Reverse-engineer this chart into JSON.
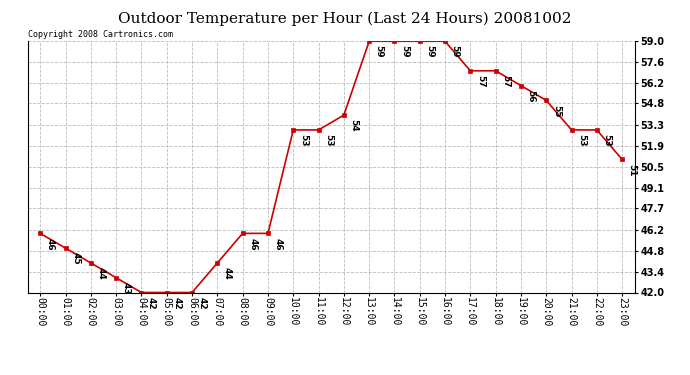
{
  "title": "Outdoor Temperature per Hour (Last 24 Hours) 20081002",
  "copyright": "Copyright 2008 Cartronics.com",
  "hours": [
    "00:00",
    "01:00",
    "02:00",
    "03:00",
    "04:00",
    "05:00",
    "06:00",
    "07:00",
    "08:00",
    "09:00",
    "10:00",
    "11:00",
    "12:00",
    "13:00",
    "14:00",
    "15:00",
    "16:00",
    "17:00",
    "18:00",
    "19:00",
    "20:00",
    "21:00",
    "22:00",
    "23:00"
  ],
  "temps": [
    46,
    45,
    44,
    43,
    42,
    42,
    42,
    44,
    46,
    46,
    53,
    53,
    54,
    59,
    59,
    59,
    59,
    57,
    57,
    56,
    55,
    53,
    53,
    51
  ],
  "line_color": "#cc0000",
  "marker_color": "#cc0000",
  "bg_color": "#ffffff",
  "grid_color": "#bbbbbb",
  "ylim_min": 42.0,
  "ylim_max": 59.0,
  "yticks": [
    42.0,
    43.4,
    44.8,
    46.2,
    47.7,
    49.1,
    50.5,
    51.9,
    53.3,
    54.8,
    56.2,
    57.6,
    59.0
  ],
  "title_fontsize": 11,
  "label_fontsize": 6.5,
  "tick_fontsize": 7,
  "copyright_fontsize": 6
}
